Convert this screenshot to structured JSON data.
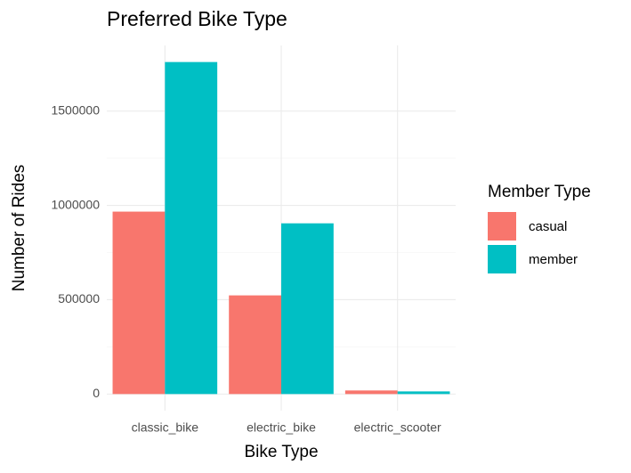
{
  "chart_data": {
    "type": "bar",
    "title": "Preferred Bike Type",
    "x_label": "Bike Type",
    "y_label": "Number of Rides",
    "legend_title": "Member Type",
    "categories": [
      "classic_bike",
      "electric_bike",
      "electric_scooter"
    ],
    "series": [
      {
        "name": "casual",
        "color": "#f8766d",
        "values": [
          967000,
          523000,
          19000
        ]
      },
      {
        "name": "member",
        "color": "#00bfc4",
        "values": [
          1760000,
          905000,
          14000
        ]
      }
    ],
    "ylim": [
      -88000,
      1848000
    ],
    "yticks": [
      0,
      500000,
      1000000,
      1500000
    ],
    "grid": true,
    "legend": "right"
  }
}
